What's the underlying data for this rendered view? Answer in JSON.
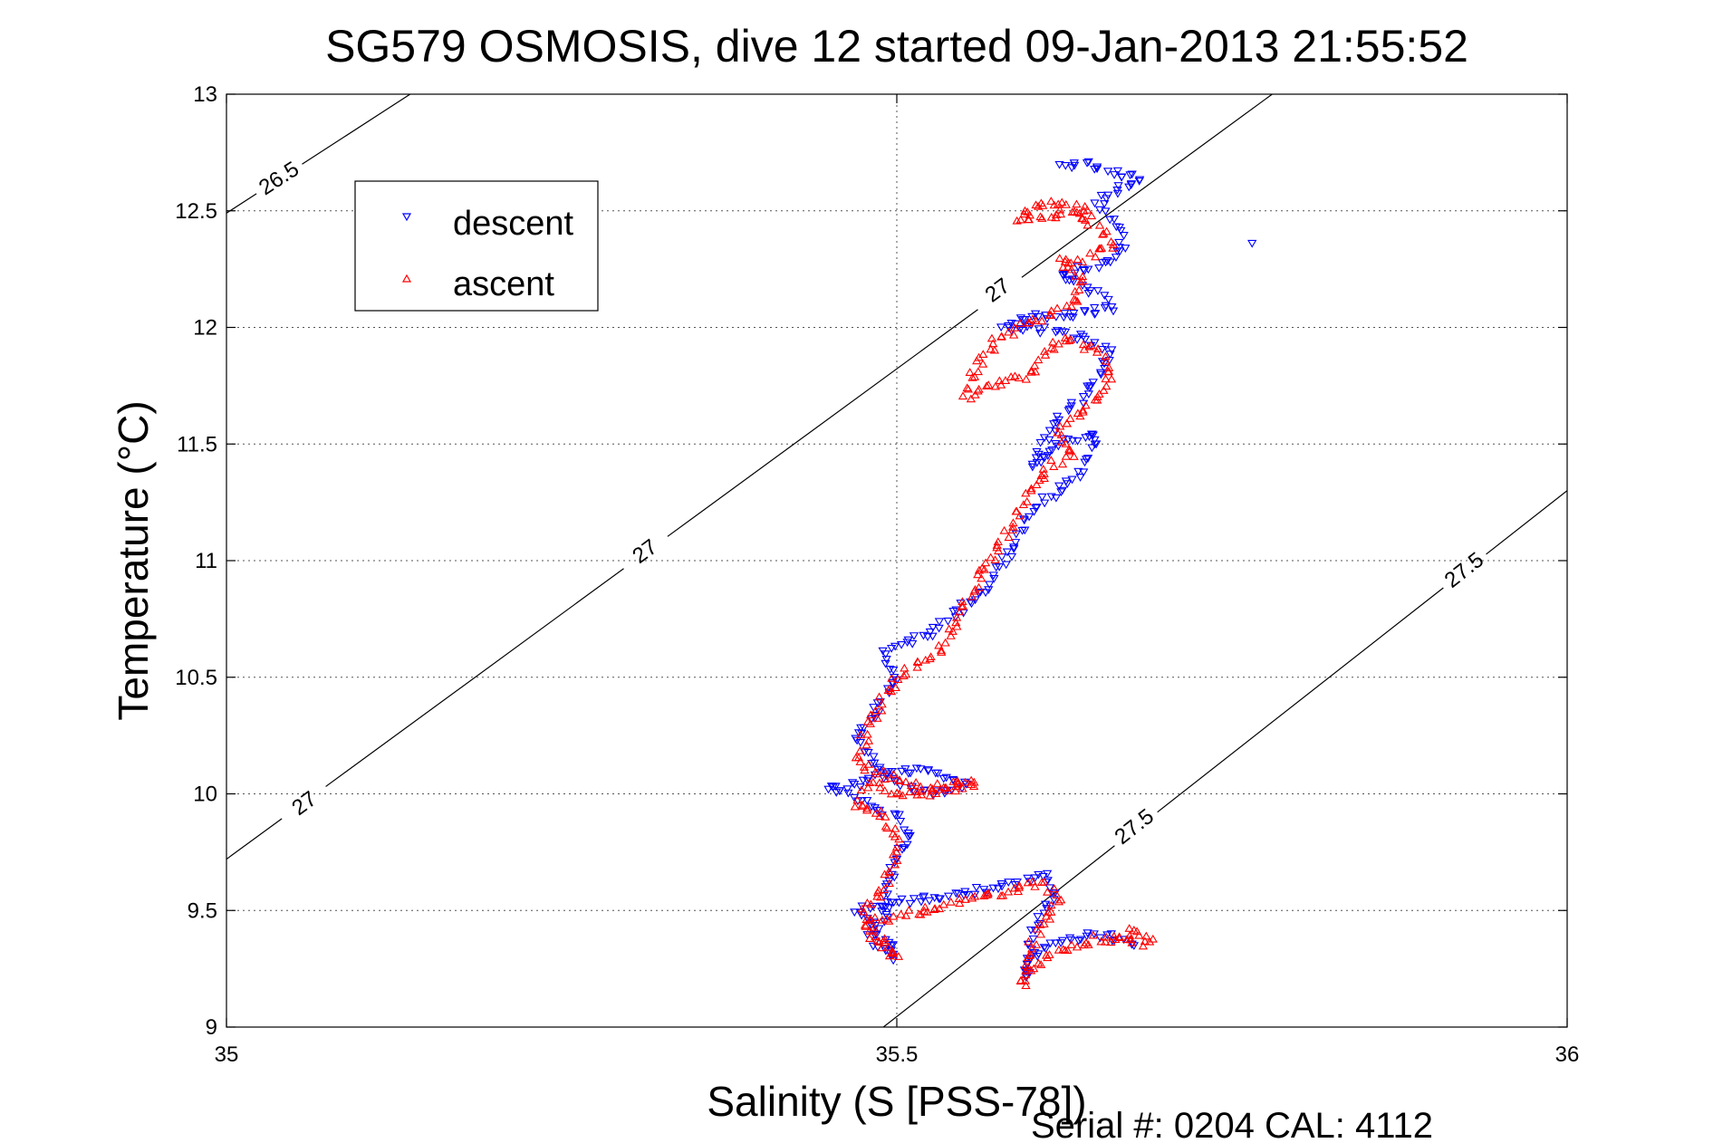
{
  "chart_data": {
    "type": "scatter",
    "title": "SG579 OSMOSIS, dive 12 started 09-Jan-2013 21:55:52",
    "xlabel": "Salinity (S [PSS-78])",
    "ylabel": "Temperature (°C)",
    "footer": "Serial #: 0204  CAL: 4112",
    "xlim": [
      35,
      36
    ],
    "ylim": [
      9,
      13
    ],
    "x_ticks": [
      35,
      35.5,
      36
    ],
    "x_tick_labels": [
      "35",
      "35.5",
      "36"
    ],
    "y_ticks": [
      9,
      9.5,
      10,
      10.5,
      11,
      11.5,
      12,
      12.5,
      13
    ],
    "y_tick_labels": [
      "9",
      "9.5",
      "10",
      "10.5",
      "11",
      "11.5",
      "12",
      "12.5",
      "13"
    ],
    "grid": true,
    "legend_position": "top-left",
    "density_contours": [
      {
        "sigma": 26.5,
        "points": [
          [
            35.0,
            12.49
          ],
          [
            35.137,
            13.0
          ]
        ],
        "labels": [
          {
            "text": "26.5",
            "s": 35.039,
            "t": 12.64
          }
        ]
      },
      {
        "sigma": 27.0,
        "points": [
          [
            35.0,
            9.72
          ],
          [
            35.78,
            13.0
          ]
        ],
        "labels": [
          {
            "text": "27",
            "s": 35.058,
            "t": 9.96
          },
          {
            "text": "27",
            "s": 35.312,
            "t": 11.04
          },
          {
            "text": "27",
            "s": 35.575,
            "t": 12.16
          }
        ]
      },
      {
        "sigma": 27.5,
        "points": [
          [
            35.49,
            9.0
          ],
          [
            36.0,
            11.3
          ]
        ],
        "labels": [
          {
            "text": "27.5",
            "s": 35.677,
            "t": 9.86
          },
          {
            "text": "27.5",
            "s": 35.923,
            "t": 10.96
          }
        ]
      }
    ],
    "series": [
      {
        "name": "descent",
        "color": "#0000ff",
        "marker": "triangle-down",
        "path": [
          [
            35.68,
            9.35
          ],
          [
            35.65,
            9.4
          ],
          [
            35.62,
            9.36
          ],
          [
            35.6,
            9.3
          ],
          [
            35.595,
            9.2
          ],
          [
            35.6,
            9.4
          ],
          [
            35.61,
            9.5
          ],
          [
            35.62,
            9.58
          ],
          [
            35.61,
            9.66
          ],
          [
            35.58,
            9.6
          ],
          [
            35.52,
            9.55
          ],
          [
            35.47,
            9.5
          ],
          [
            35.49,
            9.4
          ],
          [
            35.5,
            9.3
          ],
          [
            35.48,
            9.38
          ],
          [
            35.49,
            9.45
          ],
          [
            35.495,
            9.6
          ],
          [
            35.5,
            9.75
          ],
          [
            35.51,
            9.8
          ],
          [
            35.5,
            9.9
          ],
          [
            35.48,
            9.95
          ],
          [
            35.45,
            10.02
          ],
          [
            35.47,
            10.04
          ],
          [
            35.5,
            10.1
          ],
          [
            35.52,
            10.1
          ],
          [
            35.55,
            10.05
          ],
          [
            35.53,
            10.0
          ],
          [
            35.5,
            10.05
          ],
          [
            35.48,
            10.15
          ],
          [
            35.47,
            10.25
          ],
          [
            35.49,
            10.4
          ],
          [
            35.5,
            10.5
          ],
          [
            35.49,
            10.6
          ],
          [
            35.51,
            10.65
          ],
          [
            35.53,
            10.7
          ],
          [
            35.55,
            10.8
          ],
          [
            35.57,
            10.9
          ],
          [
            35.58,
            11.0
          ],
          [
            35.59,
            11.1
          ],
          [
            35.6,
            11.2
          ],
          [
            35.62,
            11.3
          ],
          [
            35.64,
            11.4
          ],
          [
            35.65,
            11.55
          ],
          [
            35.62,
            11.5
          ],
          [
            35.6,
            11.4
          ],
          [
            35.62,
            11.6
          ],
          [
            35.64,
            11.7
          ],
          [
            35.65,
            11.8
          ],
          [
            35.66,
            11.9
          ],
          [
            35.64,
            11.95
          ],
          [
            35.6,
            12.0
          ],
          [
            35.58,
            12.0
          ],
          [
            35.6,
            12.05
          ],
          [
            35.63,
            12.05
          ],
          [
            35.66,
            12.08
          ],
          [
            35.65,
            12.15
          ],
          [
            35.63,
            12.2
          ],
          [
            35.62,
            12.22
          ],
          [
            35.64,
            12.26
          ],
          [
            35.66,
            12.28
          ],
          [
            35.67,
            12.35
          ],
          [
            35.66,
            12.45
          ],
          [
            35.65,
            12.55
          ],
          [
            35.67,
            12.6
          ],
          [
            35.68,
            12.64
          ],
          [
            35.66,
            12.66
          ],
          [
            35.64,
            12.7
          ],
          [
            35.62,
            12.7
          ]
        ]
      },
      {
        "name": "ascent",
        "color": "#ff0000",
        "marker": "triangle-up",
        "path": [
          [
            35.66,
            9.38
          ],
          [
            35.68,
            9.42
          ],
          [
            35.69,
            9.36
          ],
          [
            35.65,
            9.38
          ],
          [
            35.62,
            9.32
          ],
          [
            35.6,
            9.25
          ],
          [
            35.595,
            9.18
          ],
          [
            35.6,
            9.35
          ],
          [
            35.61,
            9.45
          ],
          [
            35.62,
            9.55
          ],
          [
            35.61,
            9.62
          ],
          [
            35.58,
            9.58
          ],
          [
            35.52,
            9.5
          ],
          [
            35.48,
            9.45
          ],
          [
            35.49,
            9.35
          ],
          [
            35.5,
            9.3
          ],
          [
            35.48,
            9.4
          ],
          [
            35.475,
            9.5
          ],
          [
            35.49,
            9.6
          ],
          [
            35.5,
            9.7
          ],
          [
            35.5,
            9.8
          ],
          [
            35.49,
            9.9
          ],
          [
            35.47,
            9.95
          ],
          [
            35.48,
            10.05
          ],
          [
            35.5,
            10.0
          ],
          [
            35.53,
            10.0
          ],
          [
            35.56,
            10.05
          ],
          [
            35.52,
            10.03
          ],
          [
            35.48,
            10.1
          ],
          [
            35.47,
            10.15
          ],
          [
            35.48,
            10.3
          ],
          [
            35.49,
            10.4
          ],
          [
            35.5,
            10.5
          ],
          [
            35.51,
            10.55
          ],
          [
            35.53,
            10.6
          ],
          [
            35.54,
            10.7
          ],
          [
            35.55,
            10.8
          ],
          [
            35.56,
            10.9
          ],
          [
            35.57,
            11.0
          ],
          [
            35.58,
            11.1
          ],
          [
            35.59,
            11.2
          ],
          [
            35.6,
            11.3
          ],
          [
            35.61,
            11.4
          ],
          [
            35.63,
            11.45
          ],
          [
            35.62,
            11.55
          ],
          [
            35.63,
            11.6
          ],
          [
            35.65,
            11.7
          ],
          [
            35.66,
            11.8
          ],
          [
            35.65,
            11.9
          ],
          [
            35.62,
            11.95
          ],
          [
            35.6,
            11.8
          ],
          [
            35.57,
            11.75
          ],
          [
            35.55,
            11.7
          ],
          [
            35.56,
            11.85
          ],
          [
            35.575,
            11.95
          ],
          [
            35.59,
            12.0
          ],
          [
            35.61,
            12.05
          ],
          [
            35.63,
            12.1
          ],
          [
            35.64,
            12.2
          ],
          [
            35.62,
            12.28
          ],
          [
            35.64,
            12.3
          ],
          [
            35.66,
            12.35
          ],
          [
            35.65,
            12.42
          ],
          [
            35.63,
            12.5
          ],
          [
            35.61,
            12.48
          ],
          [
            35.59,
            12.46
          ],
          [
            35.6,
            12.52
          ],
          [
            35.62,
            12.53
          ],
          [
            35.64,
            12.5
          ],
          [
            35.65,
            12.48
          ]
        ]
      }
    ],
    "outliers": [
      {
        "series": "descent",
        "x": 35.765,
        "y": 12.36
      }
    ]
  }
}
